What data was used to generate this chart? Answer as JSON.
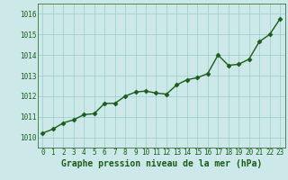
{
  "x": [
    0,
    1,
    2,
    3,
    4,
    5,
    6,
    7,
    8,
    9,
    10,
    11,
    12,
    13,
    14,
    15,
    16,
    17,
    18,
    19,
    20,
    21,
    22,
    23
  ],
  "y": [
    1010.2,
    1010.4,
    1010.7,
    1010.85,
    1011.1,
    1011.15,
    1011.65,
    1011.65,
    1012.0,
    1012.2,
    1012.25,
    1012.15,
    1012.1,
    1012.55,
    1012.8,
    1012.9,
    1013.1,
    1014.0,
    1013.5,
    1013.55,
    1013.8,
    1014.65,
    1015.0,
    1015.75
  ],
  "line_color": "#1a5c1a",
  "marker": "D",
  "marker_size": 2.5,
  "linewidth": 1.0,
  "bg_color": "#cce8e8",
  "grid_color": "#99cccc",
  "xlabel": "Graphe pression niveau de la mer (hPa)",
  "xlabel_fontsize": 7,
  "xlabel_color": "#1a5c1a",
  "tick_fontsize": 5.5,
  "tick_color": "#1a5c1a",
  "ylim": [
    1009.5,
    1016.5
  ],
  "yticks": [
    1010,
    1011,
    1012,
    1013,
    1014,
    1015,
    1016
  ],
  "xticks": [
    0,
    1,
    2,
    3,
    4,
    5,
    6,
    7,
    8,
    9,
    10,
    11,
    12,
    13,
    14,
    15,
    16,
    17,
    18,
    19,
    20,
    21,
    22,
    23
  ]
}
